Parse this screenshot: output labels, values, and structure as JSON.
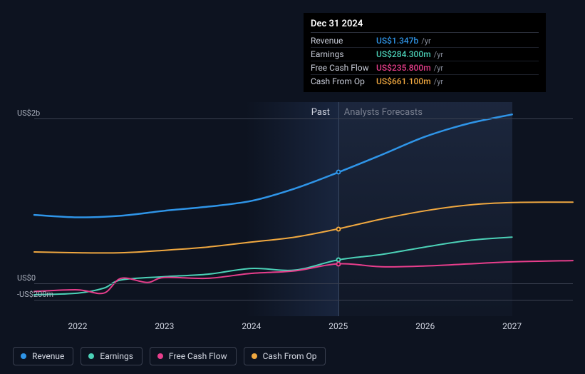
{
  "chart": {
    "type": "line",
    "background_color": "#0d1320",
    "grid_color": "#3a4050",
    "text_color": "#aab0bd",
    "y_axis": {
      "min": -400,
      "max": 2200,
      "ticks": [
        {
          "value": 2000,
          "label": "US$2b"
        },
        {
          "value": 0,
          "label": "US$0"
        },
        {
          "value": -200,
          "label": "-US$200m"
        }
      ]
    },
    "x_axis": {
      "min": 2021.5,
      "max": 2027.7,
      "ticks": [
        2022,
        2023,
        2024,
        2025,
        2026,
        2027
      ]
    },
    "divider_x": 2025,
    "forecast_end_x": 2027,
    "past_label": "Past",
    "forecast_label": "Analysts Forecasts",
    "series": [
      {
        "key": "revenue",
        "label": "Revenue",
        "color": "#2f95e8",
        "line_width": 2.5,
        "points": [
          [
            2021.5,
            830
          ],
          [
            2022.0,
            800
          ],
          [
            2022.5,
            820
          ],
          [
            2023.0,
            880
          ],
          [
            2023.5,
            930
          ],
          [
            2024.0,
            1000
          ],
          [
            2024.5,
            1150
          ],
          [
            2025.0,
            1347
          ],
          [
            2025.5,
            1560
          ],
          [
            2026.0,
            1780
          ],
          [
            2026.5,
            1940
          ],
          [
            2027.0,
            2050
          ]
        ]
      },
      {
        "key": "earnings",
        "label": "Earnings",
        "color": "#4cd2b8",
        "line_width": 2,
        "points": [
          [
            2021.5,
            -140
          ],
          [
            2022.0,
            -120
          ],
          [
            2022.3,
            -60
          ],
          [
            2022.5,
            40
          ],
          [
            2023.0,
            80
          ],
          [
            2023.5,
            110
          ],
          [
            2024.0,
            180
          ],
          [
            2024.5,
            160
          ],
          [
            2025.0,
            284
          ],
          [
            2025.5,
            350
          ],
          [
            2026.0,
            440
          ],
          [
            2026.5,
            520
          ],
          [
            2027.0,
            560
          ]
        ]
      },
      {
        "key": "free_cash_flow",
        "label": "Free Cash Flow",
        "color": "#e83e8c",
        "line_width": 2,
        "points": [
          [
            2021.5,
            -100
          ],
          [
            2022.0,
            -80
          ],
          [
            2022.3,
            -120
          ],
          [
            2022.5,
            60
          ],
          [
            2022.8,
            10
          ],
          [
            2023.0,
            70
          ],
          [
            2023.5,
            60
          ],
          [
            2024.0,
            120
          ],
          [
            2024.5,
            150
          ],
          [
            2025.0,
            236
          ],
          [
            2025.5,
            200
          ],
          [
            2026.0,
            210
          ],
          [
            2026.5,
            235
          ],
          [
            2027.0,
            260
          ],
          [
            2027.7,
            275
          ]
        ]
      },
      {
        "key": "cash_from_op",
        "label": "Cash From Op",
        "color": "#f0a840",
        "line_width": 2,
        "points": [
          [
            2021.5,
            380
          ],
          [
            2022.0,
            370
          ],
          [
            2022.5,
            370
          ],
          [
            2023.0,
            400
          ],
          [
            2023.5,
            440
          ],
          [
            2024.0,
            500
          ],
          [
            2024.5,
            560
          ],
          [
            2025.0,
            661
          ],
          [
            2025.5,
            780
          ],
          [
            2026.0,
            880
          ],
          [
            2026.5,
            950
          ],
          [
            2027.0,
            980
          ],
          [
            2027.7,
            985
          ]
        ]
      }
    ],
    "marker_x": 2025
  },
  "tooltip": {
    "date": "Dec 31 2024",
    "rows": [
      {
        "metric": "Revenue",
        "value": "US$1.347b",
        "unit": "/yr",
        "color": "#2f95e8"
      },
      {
        "metric": "Earnings",
        "value": "US$284.300m",
        "unit": "/yr",
        "color": "#4cd2b8"
      },
      {
        "metric": "Free Cash Flow",
        "value": "US$235.800m",
        "unit": "/yr",
        "color": "#e83e8c"
      },
      {
        "metric": "Cash From Op",
        "value": "US$661.100m",
        "unit": "/yr",
        "color": "#f0a840"
      }
    ]
  }
}
